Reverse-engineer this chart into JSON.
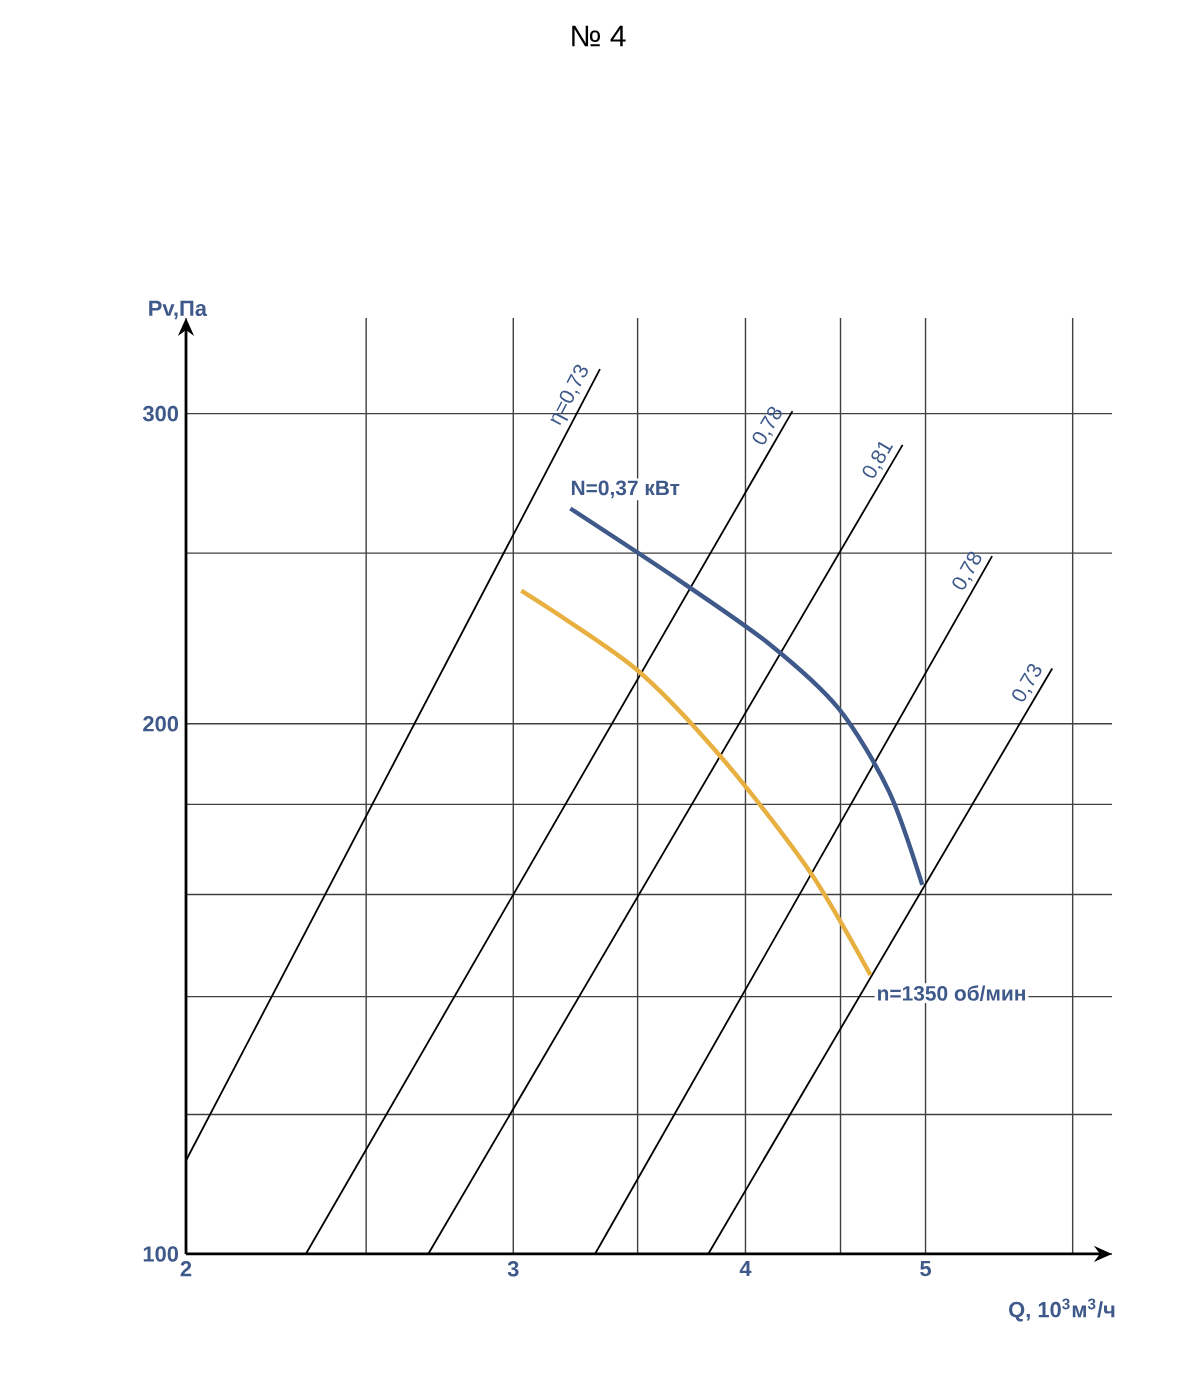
{
  "chart_data": {
    "type": "line",
    "title": "№ 4",
    "xlabel": "Q, 10$^{3}$м$^{3}$/ч",
    "ylabel": "Pv,Па",
    "log": "xy",
    "xlim": [
      2,
      6.3
    ],
    "ylim": [
      100,
      340
    ],
    "xticks": [
      2,
      {
        "value": 2.5,
        "label": null
      },
      3,
      {
        "value": 3.5,
        "label": null
      },
      4,
      {
        "value": 4.5,
        "label": null
      },
      5,
      {
        "value": 6,
        "label": null
      }
    ],
    "yticks": [
      100,
      {
        "value": 120,
        "label": null
      },
      {
        "value": 140,
        "label": null
      },
      {
        "value": 160,
        "label": null
      },
      {
        "value": 180,
        "label": null
      },
      200,
      {
        "value": 250,
        "label": null
      },
      300
    ],
    "grid": true,
    "series": [
      {
        "name": "η=0,73",
        "color": "#000000",
        "x": [
          2,
          3.34
        ],
        "values": [
          113,
          318
        ]
      },
      {
        "name": "0,78",
        "color": "#000000",
        "x": [
          2.32,
          4.24
        ],
        "values": [
          100,
          301
        ]
      },
      {
        "name": "0,81",
        "color": "#000000",
        "x": [
          2.7,
          4.86
        ],
        "values": [
          100,
          288
        ]
      },
      {
        "name": "0,78",
        "color": "#000000",
        "x": [
          3.32,
          5.43
        ],
        "values": [
          100,
          249
        ]
      },
      {
        "name": "0,73",
        "color": "#000000",
        "x": [
          3.82,
          5.85
        ],
        "values": [
          100,
          215
        ]
      },
      {
        "name": "N=0,37 кВт",
        "color": "#3f5a8a",
        "x": [
          3.22,
          3.69,
          4.12,
          4.49,
          4.78,
          4.98
        ],
        "values": [
          265,
          241,
          222,
          204,
          183,
          162
        ]
      },
      {
        "name": "n=1350 об/мин",
        "color": "#e8b040",
        "x": [
          3.03,
          3.49,
          3.89,
          4.33,
          4.67
        ],
        "values": [
          238,
          215,
          191,
          165,
          144
        ]
      }
    ]
  }
}
